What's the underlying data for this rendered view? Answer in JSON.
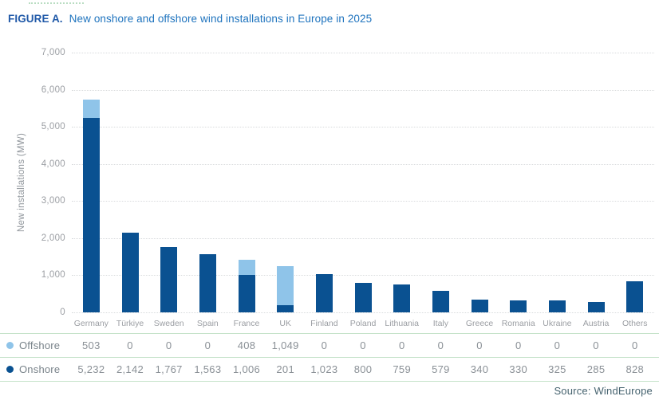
{
  "title": {
    "prefix": "FIGURE A.",
    "text": "New onshore and offshore wind installations in Europe in 2025"
  },
  "chart_data": {
    "type": "bar",
    "stacked": true,
    "title": "New onshore and offshore wind installations in Europe in 2025",
    "ylabel": "New installations (MW)",
    "xlabel": "",
    "ylim": [
      0,
      7000
    ],
    "ytick_step": 1000,
    "grid": "horizontal-dotted",
    "legend_position": "table-below",
    "categories": [
      "Germany",
      "Türkiye",
      "Sweden",
      "Spain",
      "France",
      "UK",
      "Finland",
      "Poland",
      "Lithuania",
      "Italy",
      "Greece",
      "Romania",
      "Ukraine",
      "Austria",
      "Others"
    ],
    "series": [
      {
        "name": "Offshore",
        "color": "#8fc4e9",
        "values": [
          503,
          0,
          0,
          0,
          408,
          1049,
          0,
          0,
          0,
          0,
          0,
          0,
          0,
          0,
          0
        ]
      },
      {
        "name": "Onshore",
        "color": "#0a5191",
        "values": [
          5232,
          2142,
          1767,
          1563,
          1006,
          201,
          1023,
          800,
          759,
          579,
          340,
          330,
          325,
          285,
          828
        ]
      }
    ]
  },
  "table": {
    "rows": [
      {
        "label": "Offshore",
        "dot_color": "#8fc4e9",
        "values": [
          "503",
          "0",
          "0",
          "0",
          "408",
          "1,049",
          "0",
          "0",
          "0",
          "0",
          "0",
          "0",
          "0",
          "0",
          "0"
        ]
      },
      {
        "label": "Onshore",
        "dot_color": "#0a5191",
        "values": [
          "5,232",
          "2,142",
          "1,767",
          "1,563",
          "1,006",
          "201",
          "1,023",
          "800",
          "759",
          "579",
          "340",
          "330",
          "325",
          "285",
          "828"
        ]
      }
    ]
  },
  "source": "Source: WindEurope",
  "colors": {
    "offshore": "#8fc4e9",
    "onshore": "#0a5191",
    "title_prefix": "#2059a8",
    "title_text": "#1e73be",
    "axis_text": "#9b9ea3",
    "gridline": "#d9dbdd",
    "table_separator": "#c4e2c9",
    "source_text": "#46636f"
  }
}
